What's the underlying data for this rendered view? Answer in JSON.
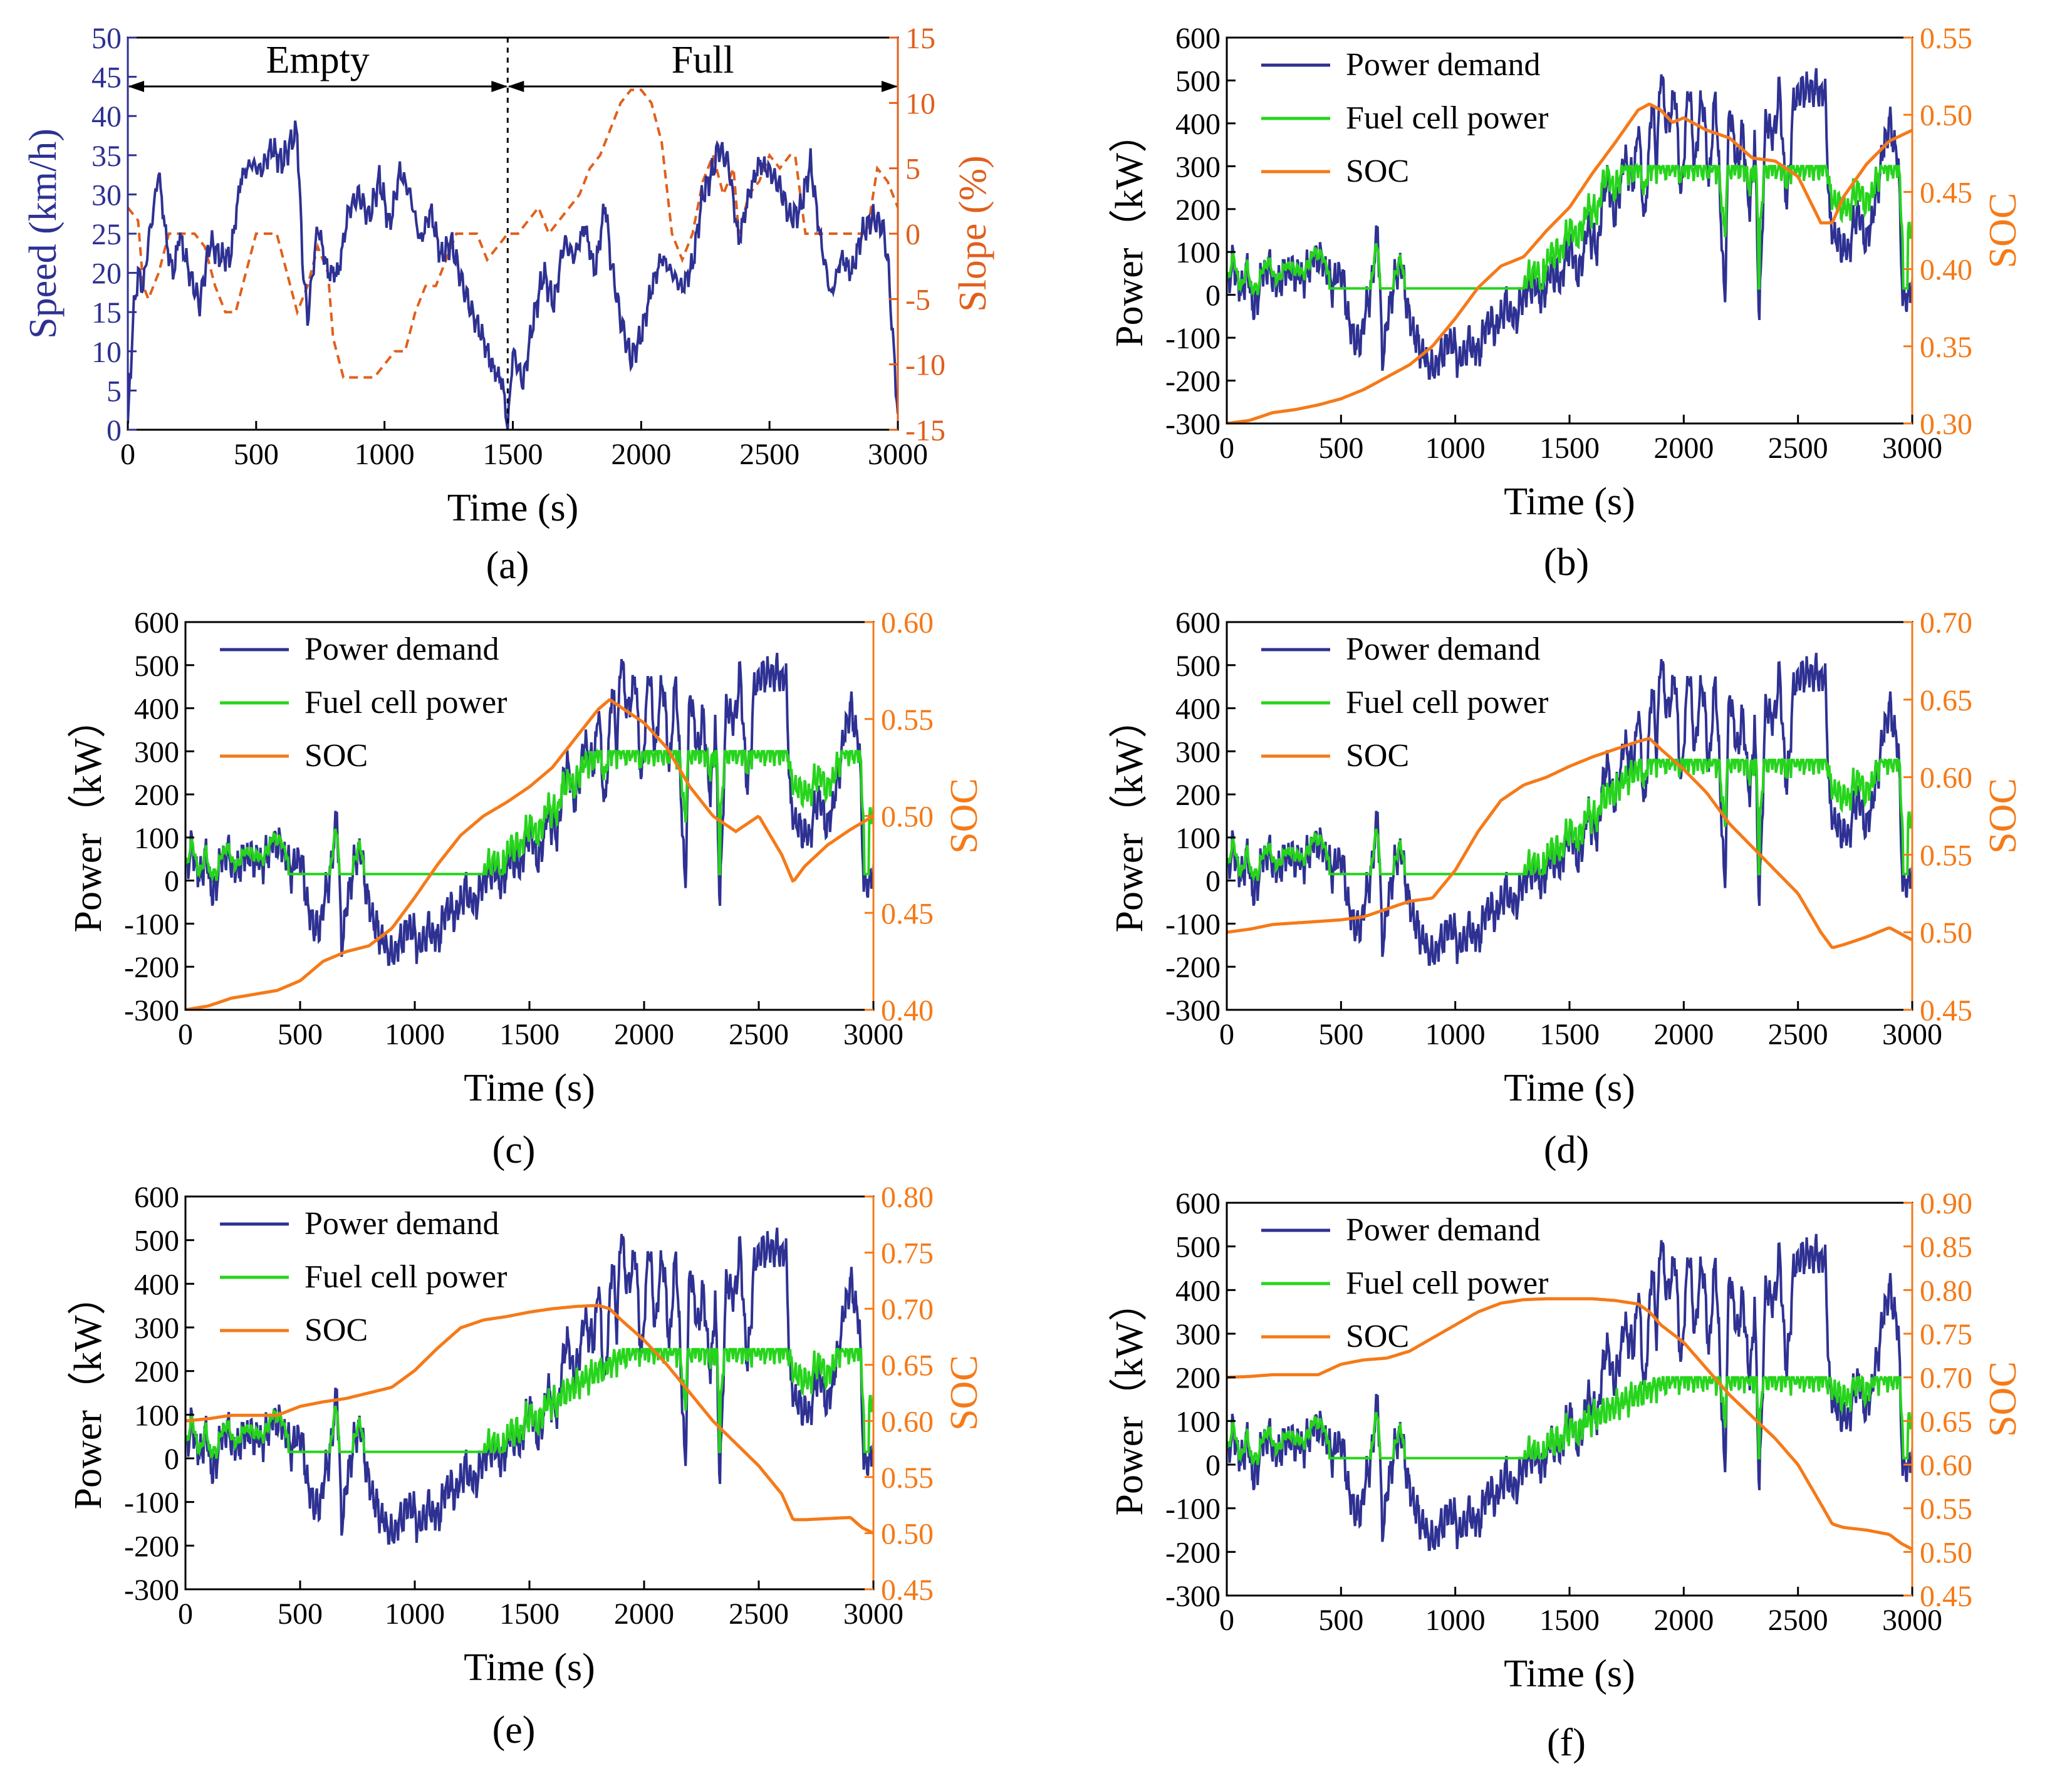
{
  "chart_data": [
    {
      "panel": "a",
      "type": "line",
      "caption": "(a)",
      "xlabel": "Time (s)",
      "ylabel_left": "Speed (km/h)",
      "ylabel_right": "Slope (%)",
      "xlim": [
        0,
        3000
      ],
      "ylim_left": [
        0,
        50
      ],
      "ylim_right": [
        -15,
        15
      ],
      "xticks": [
        0,
        500,
        1000,
        1500,
        2000,
        2500,
        3000
      ],
      "yticks_left": [
        0,
        5,
        10,
        15,
        20,
        25,
        30,
        35,
        40,
        45,
        50
      ],
      "yticks_right": [
        -15,
        -10,
        -5,
        0,
        5,
        10,
        15
      ],
      "colors": {
        "speed": "#2e3192",
        "slope": "#e0601c",
        "axis_right": "#e0601c",
        "axis_left": "#2e3192"
      },
      "annotations": [
        {
          "text": "Empty",
          "x_from": 0,
          "x_to": 1480
        },
        {
          "text": "Full",
          "x_from": 1480,
          "x_to": 3000
        }
      ],
      "divider_x": 1480,
      "series": [
        {
          "name": "Speed",
          "axis": "left",
          "style": "solid",
          "x": [
            0,
            20,
            40,
            60,
            80,
            100,
            120,
            140,
            160,
            180,
            200,
            240,
            280,
            320,
            360,
            400,
            440,
            480,
            520,
            560,
            600,
            640,
            660,
            680,
            700,
            740,
            780,
            820,
            860,
            900,
            940,
            980,
            1020,
            1060,
            1100,
            1140,
            1180,
            1220,
            1260,
            1300,
            1340,
            1380,
            1420,
            1460,
            1480,
            1500,
            1540,
            1580,
            1620,
            1660,
            1700,
            1740,
            1780,
            1820,
            1860,
            1880,
            1920,
            1960,
            2000,
            2040,
            2080,
            2120,
            2160,
            2200,
            2240,
            2280,
            2300,
            2340,
            2380,
            2420,
            2460,
            2500,
            2540,
            2580,
            2620,
            2660,
            2700,
            2740,
            2780,
            2820,
            2860,
            2900,
            2940,
            2960,
            2980,
            3000
          ],
          "values": [
            0,
            14,
            20,
            18,
            24,
            28,
            33,
            27,
            22,
            20,
            25,
            20,
            16,
            24,
            22,
            22,
            32,
            34,
            33,
            36,
            34,
            37,
            38,
            22,
            14,
            26,
            20,
            20,
            28,
            30,
            27,
            32,
            26,
            33,
            30,
            24,
            28,
            22,
            24,
            19,
            15,
            12,
            8,
            6,
            0,
            10,
            6,
            14,
            20,
            16,
            24,
            22,
            26,
            20,
            29,
            22,
            14,
            9,
            12,
            18,
            22,
            20,
            18,
            21,
            30,
            33,
            36,
            34,
            24,
            30,
            34,
            33,
            31,
            27,
            28,
            34,
            24,
            17,
            22,
            20,
            25,
            27,
            26,
            22,
            12,
            2
          ]
        },
        {
          "name": "Slope",
          "axis": "right",
          "style": "dashed",
          "x": [
            0,
            40,
            60,
            80,
            120,
            160,
            200,
            260,
            300,
            340,
            380,
            420,
            460,
            500,
            540,
            580,
            620,
            660,
            700,
            740,
            780,
            800,
            840,
            880,
            920,
            960,
            1000,
            1040,
            1080,
            1120,
            1160,
            1200,
            1240,
            1280,
            1320,
            1360,
            1400,
            1440,
            1480,
            1520,
            1560,
            1600,
            1640,
            1680,
            1720,
            1760,
            1800,
            1840,
            1880,
            1920,
            1960,
            2000,
            2040,
            2080,
            2120,
            2160,
            2200,
            2240,
            2280,
            2320,
            2360,
            2380,
            2420,
            2460,
            2500,
            2540,
            2580,
            2600,
            2640,
            2700,
            2760,
            2800,
            2840,
            2880,
            2920,
            2960,
            2980,
            3000
          ],
          "values": [
            2,
            1,
            -4,
            -5,
            -3,
            0,
            0,
            0,
            -1,
            -4,
            -6,
            -6,
            -3,
            0,
            0,
            0,
            -3,
            -6,
            -4,
            -1,
            -3,
            -8,
            -11,
            -11,
            -11,
            -11,
            -10,
            -9,
            -9,
            -6,
            -4,
            -4,
            -2,
            0,
            0,
            0,
            -2,
            -1,
            0,
            0,
            1,
            2,
            0,
            1,
            2,
            3,
            5,
            6,
            8,
            10,
            11,
            11,
            10,
            7,
            0,
            -2,
            0,
            4,
            6,
            3,
            5,
            0,
            3,
            4,
            6,
            5,
            6,
            6,
            0,
            0,
            0,
            0,
            0,
            0,
            5,
            4,
            3,
            2
          ]
        }
      ]
    },
    {
      "panel": "b",
      "type": "line",
      "caption": "(b)",
      "xlabel": "Time (s)",
      "ylabel_left": "Power（kW）",
      "ylabel_right": "SOC",
      "xlim": [
        0,
        3000
      ],
      "ylim_left": [
        -300,
        600
      ],
      "ylim_right": [
        0.3,
        0.55
      ],
      "xticks": [
        0,
        500,
        1000,
        1500,
        2000,
        2500,
        3000
      ],
      "yticks_left": [
        -300,
        -200,
        -100,
        0,
        100,
        200,
        300,
        400,
        500,
        600
      ],
      "yticks_right": [
        "0.30",
        "0.35",
        "0.40",
        "0.45",
        "0.50",
        "0.55"
      ],
      "legend": [
        "Power demand",
        "Fuel cell power",
        "SOC"
      ],
      "fc_cap": 300,
      "fc_idle": 15,
      "fc_onset": 1250,
      "fc_ramp_end": 1650,
      "soc": {
        "x": [
          0,
          100,
          200,
          300,
          400,
          500,
          600,
          700,
          800,
          900,
          1000,
          1100,
          1200,
          1300,
          1400,
          1500,
          1600,
          1700,
          1800,
          1850,
          1900,
          1950,
          2000,
          2100,
          2200,
          2300,
          2400,
          2500,
          2600,
          2650,
          2700,
          2800,
          2900,
          3000
        ],
        "values": [
          0.3,
          0.302,
          0.307,
          0.309,
          0.312,
          0.316,
          0.322,
          0.33,
          0.338,
          0.35,
          0.368,
          0.388,
          0.402,
          0.408,
          0.425,
          0.44,
          0.462,
          0.482,
          0.503,
          0.507,
          0.503,
          0.495,
          0.498,
          0.49,
          0.485,
          0.472,
          0.47,
          0.46,
          0.43,
          0.43,
          0.447,
          0.468,
          0.483,
          0.49
        ]
      }
    },
    {
      "panel": "c",
      "type": "line",
      "caption": "(c)",
      "xlabel": "Time (s)",
      "ylabel_left": "Power（kW）",
      "ylabel_right": "SOC",
      "xlim": [
        0,
        3000
      ],
      "ylim_left": [
        -300,
        600
      ],
      "ylim_right": [
        0.4,
        0.6
      ],
      "xticks": [
        0,
        500,
        1000,
        1500,
        2000,
        2500,
        3000
      ],
      "yticks_left": [
        -300,
        -200,
        -100,
        0,
        100,
        200,
        300,
        400,
        500,
        600
      ],
      "yticks_right": [
        "0.40",
        "0.45",
        "0.50",
        "0.55",
        "0.60"
      ],
      "legend": [
        "Power demand",
        "Fuel cell power",
        "SOC"
      ],
      "fc_cap": 300,
      "fc_idle": 15,
      "fc_onset": 1250,
      "fc_ramp_end": 1800,
      "soc": {
        "x": [
          0,
          100,
          200,
          300,
          400,
          500,
          600,
          700,
          800,
          900,
          1000,
          1100,
          1200,
          1300,
          1400,
          1500,
          1600,
          1700,
          1800,
          1850,
          1900,
          2000,
          2100,
          2200,
          2300,
          2400,
          2500,
          2600,
          2650,
          2700,
          2800,
          2900,
          3000
        ],
        "values": [
          0.4,
          0.402,
          0.406,
          0.408,
          0.41,
          0.415,
          0.425,
          0.43,
          0.433,
          0.442,
          0.458,
          0.475,
          0.49,
          0.5,
          0.507,
          0.515,
          0.525,
          0.54,
          0.555,
          0.56,
          0.556,
          0.548,
          0.535,
          0.515,
          0.5,
          0.492,
          0.5,
          0.48,
          0.466,
          0.474,
          0.485,
          0.493,
          0.5
        ]
      }
    },
    {
      "panel": "d",
      "type": "line",
      "caption": "(d)",
      "xlabel": "Time (s)",
      "ylabel_left": "Power（kW）",
      "ylabel_right": "SOC",
      "xlim": [
        0,
        3000
      ],
      "ylim_left": [
        -300,
        600
      ],
      "ylim_right": [
        0.45,
        0.7
      ],
      "xticks": [
        0,
        500,
        1000,
        1500,
        2000,
        2500,
        3000
      ],
      "yticks_left": [
        -300,
        -200,
        -100,
        0,
        100,
        200,
        300,
        400,
        500,
        600
      ],
      "yticks_right": [
        "0.45",
        "0.50",
        "0.55",
        "0.60",
        "0.65",
        "0.70"
      ],
      "legend": [
        "Power demand",
        "Fuel cell power",
        "SOC"
      ],
      "fc_cap": 280,
      "fc_idle": 15,
      "fc_onset": 1250,
      "fc_ramp_end": 1850,
      "soc": {
        "x": [
          0,
          100,
          200,
          300,
          400,
          500,
          600,
          700,
          800,
          900,
          1000,
          1100,
          1200,
          1300,
          1400,
          1500,
          1600,
          1700,
          1800,
          1850,
          1900,
          2000,
          2100,
          2200,
          2300,
          2400,
          2500,
          2600,
          2650,
          2700,
          2800,
          2900,
          3000
        ],
        "values": [
          0.5,
          0.502,
          0.505,
          0.506,
          0.507,
          0.508,
          0.51,
          0.515,
          0.52,
          0.522,
          0.54,
          0.565,
          0.585,
          0.595,
          0.6,
          0.607,
          0.613,
          0.618,
          0.623,
          0.625,
          0.618,
          0.605,
          0.59,
          0.57,
          0.555,
          0.54,
          0.525,
          0.5,
          0.49,
          0.492,
          0.497,
          0.503,
          0.495
        ]
      }
    },
    {
      "panel": "e",
      "type": "line",
      "caption": "(e)",
      "xlabel": "Time (s)",
      "ylabel_left": "Power（kW）",
      "ylabel_right": "SOC",
      "xlim": [
        0,
        3000
      ],
      "ylim_left": [
        -300,
        600
      ],
      "ylim_right": [
        0.45,
        0.8
      ],
      "xticks": [
        0,
        500,
        1000,
        1500,
        2000,
        2500,
        3000
      ],
      "yticks_left": [
        -300,
        -200,
        -100,
        0,
        100,
        200,
        300,
        400,
        500,
        600
      ],
      "yticks_right": [
        "0.45",
        "0.50",
        "0.55",
        "0.60",
        "0.65",
        "0.70",
        "0.75",
        "0.80"
      ],
      "legend": [
        "Power demand",
        "Fuel cell power",
        "SOC"
      ],
      "fc_cap": 250,
      "fc_idle": 15,
      "fc_onset": 1250,
      "fc_ramp_end": 1950,
      "soc": {
        "x": [
          0,
          100,
          200,
          300,
          400,
          500,
          600,
          700,
          800,
          900,
          1000,
          1100,
          1200,
          1300,
          1400,
          1500,
          1600,
          1700,
          1800,
          1850,
          1900,
          2000,
          2100,
          2200,
          2300,
          2400,
          2500,
          2600,
          2650,
          2700,
          2800,
          2900,
          2950,
          3000
        ],
        "values": [
          0.6,
          0.602,
          0.605,
          0.605,
          0.605,
          0.613,
          0.617,
          0.62,
          0.625,
          0.63,
          0.645,
          0.665,
          0.683,
          0.69,
          0.693,
          0.697,
          0.7,
          0.702,
          0.703,
          0.7,
          0.69,
          0.672,
          0.65,
          0.625,
          0.6,
          0.58,
          0.56,
          0.535,
          0.512,
          0.512,
          0.513,
          0.514,
          0.505,
          0.5
        ]
      }
    },
    {
      "panel": "f",
      "type": "line",
      "caption": "(f)",
      "xlabel": "Time (s)",
      "ylabel_left": "Power（kW）",
      "ylabel_right": "SOC",
      "xlim": [
        0,
        3000
      ],
      "ylim_left": [
        -300,
        600
      ],
      "ylim_right": [
        0.45,
        0.9
      ],
      "xticks": [
        0,
        500,
        1000,
        1500,
        2000,
        2500,
        3000
      ],
      "yticks_left": [
        -300,
        -200,
        -100,
        0,
        100,
        200,
        300,
        400,
        500,
        600
      ],
      "yticks_right": [
        "0.45",
        "0.50",
        "0.55",
        "0.60",
        "0.65",
        "0.70",
        "0.75",
        "0.80",
        "0.85",
        "0.90"
      ],
      "legend": [
        "Power demand",
        "Fuel cell power",
        "SOC"
      ],
      "fc_cap": 200,
      "fc_idle": 15,
      "fc_onset": 1250,
      "fc_ramp_end": 1950,
      "soc": {
        "x": [
          0,
          100,
          200,
          300,
          400,
          500,
          600,
          700,
          800,
          900,
          1000,
          1100,
          1200,
          1300,
          1400,
          1500,
          1600,
          1700,
          1800,
          1850,
          1900,
          2000,
          2100,
          2200,
          2300,
          2400,
          2500,
          2600,
          2650,
          2700,
          2800,
          2900,
          2950,
          3000
        ],
        "values": [
          0.7,
          0.701,
          0.703,
          0.703,
          0.703,
          0.715,
          0.72,
          0.722,
          0.73,
          0.745,
          0.76,
          0.775,
          0.785,
          0.789,
          0.79,
          0.79,
          0.79,
          0.788,
          0.784,
          0.775,
          0.76,
          0.74,
          0.71,
          0.68,
          0.655,
          0.63,
          0.6,
          0.555,
          0.532,
          0.528,
          0.525,
          0.52,
          0.51,
          0.503
        ]
      }
    }
  ],
  "power_demand_profile": {
    "name": "Power demand",
    "x": [
      0,
      30,
      60,
      90,
      120,
      150,
      180,
      220,
      260,
      300,
      340,
      380,
      420,
      460,
      500,
      540,
      580,
      600,
      640,
      660,
      680,
      720,
      760,
      800,
      840,
      880,
      900,
      940,
      980,
      1020,
      1060,
      1100,
      1140,
      1180,
      1220,
      1260,
      1300,
      1340,
      1380,
      1420,
      1460,
      1500,
      1540,
      1580,
      1620,
      1660,
      1700,
      1740,
      1780,
      1800,
      1830,
      1860,
      1880,
      1900,
      1930,
      1960,
      1990,
      2020,
      2050,
      2080,
      2110,
      2140,
      2160,
      2180,
      2200,
      2230,
      2260,
      2290,
      2310,
      2330,
      2360,
      2390,
      2420,
      2450,
      2480,
      2500,
      2530,
      2560,
      2590,
      2620,
      2640,
      2680,
      2720,
      2760,
      2800,
      2840,
      2880,
      2900,
      2920,
      2940,
      2960,
      2980,
      3000
    ],
    "values": [
      20,
      80,
      0,
      60,
      -40,
      40,
      70,
      20,
      60,
      50,
      40,
      90,
      80,
      20,
      60,
      -80,
      -120,
      -60,
      40,
      170,
      -150,
      0,
      80,
      -60,
      -120,
      -160,
      -180,
      -140,
      -100,
      -160,
      -110,
      -140,
      -60,
      -80,
      -20,
      -60,
      0,
      30,
      -10,
      60,
      30,
      120,
      40,
      160,
      100,
      280,
      180,
      320,
      260,
      400,
      160,
      460,
      300,
      520,
      380,
      480,
      220,
      500,
      300,
      480,
      260,
      480,
      200,
      -20,
      460,
      300,
      380,
      180,
      380,
      -60,
      420,
      360,
      480,
      200,
      440,
      470,
      480,
      480,
      480,
      460,
      160,
      120,
      100,
      200,
      120,
      220,
      360,
      400,
      360,
      300,
      -30,
      0,
      20
    ]
  }
}
